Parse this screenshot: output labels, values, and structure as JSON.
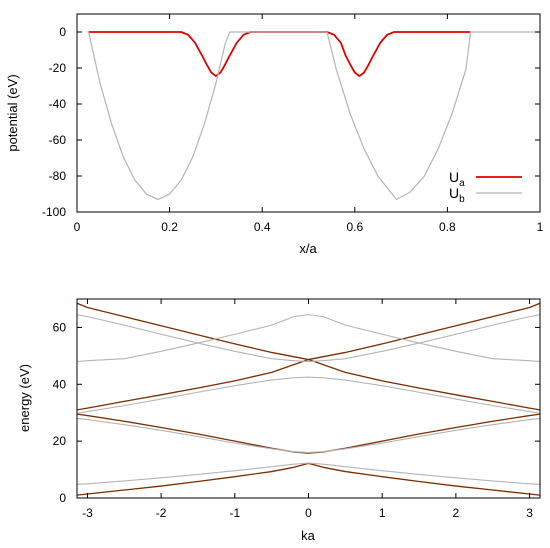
{
  "chart_data": [
    {
      "type": "line",
      "xlabel": "x/a",
      "ylabel": "potential (eV)",
      "xlim": [
        0,
        1
      ],
      "ylim": [
        -100,
        10
      ],
      "xticks": [
        0,
        0.2,
        0.4,
        0.6,
        0.8,
        1
      ],
      "xtick_labels": [
        "0",
        "0.2",
        "0.4",
        "0.6",
        "0.8",
        "1"
      ],
      "yticks": [
        0,
        -20,
        -40,
        -60,
        -80,
        -100
      ],
      "ytick_labels": [
        "0",
        "-20",
        "-40",
        "-60",
        "-80",
        "-100"
      ],
      "grid": false,
      "legend_position": "bottom-right",
      "series": [
        {
          "name": "U",
          "subscript": "a",
          "color": "#e00000",
          "x": [
            0.025,
            0.05,
            0.1,
            0.15,
            0.2,
            0.225,
            0.24,
            0.255,
            0.27,
            0.28,
            0.29,
            0.3,
            0.31,
            0.32,
            0.33,
            0.345,
            0.36,
            0.375,
            0.4,
            0.45,
            0.5,
            0.54,
            0.555,
            0.57,
            0.58,
            0.59,
            0.6,
            0.61,
            0.62,
            0.63,
            0.64,
            0.655,
            0.67,
            0.685,
            0.7,
            0.75,
            0.8,
            0.85
          ],
          "y": [
            0,
            0,
            0,
            0,
            0,
            0,
            -1.5,
            -6,
            -13,
            -18,
            -22.5,
            -24.5,
            -22.5,
            -18,
            -13,
            -6,
            -1.5,
            0,
            0,
            0,
            0,
            0,
            -1.5,
            -6,
            -13,
            -18,
            -22.5,
            -24.5,
            -22.5,
            -18,
            -13,
            -6,
            -1.5,
            0,
            0,
            0,
            0,
            0
          ]
        },
        {
          "name": "U",
          "subscript": "b",
          "color": "#b4b4b4",
          "x": [
            0.025,
            0.05,
            0.075,
            0.1,
            0.125,
            0.15,
            0.175,
            0.2,
            0.225,
            0.25,
            0.275,
            0.3,
            0.32,
            0.33,
            0.35,
            0.4,
            0.45,
            0.5,
            0.54,
            0.56,
            0.59,
            0.62,
            0.65,
            0.69,
            0.72,
            0.75,
            0.78,
            0.81,
            0.84,
            0.85,
            0.9,
            0.95,
            1.0
          ],
          "y": [
            0,
            -28.6,
            -51.2,
            -69.4,
            -82.3,
            -90.1,
            -93,
            -90.1,
            -82.3,
            -69.4,
            -51.2,
            -28.6,
            -6.5,
            0,
            0,
            0,
            0,
            0,
            0,
            -20.7,
            -45.4,
            -64.9,
            -80.1,
            -93,
            -88.9,
            -80.1,
            -64.9,
            -45.4,
            -20.7,
            0,
            0,
            0,
            0
          ]
        }
      ]
    },
    {
      "type": "line",
      "xlabel": "ka",
      "ylabel": "energy (eV)",
      "xlim": [
        -3.1416,
        3.1416
      ],
      "ylim": [
        0,
        70
      ],
      "xticks": [
        -3,
        -2,
        -1,
        0,
        1,
        2,
        3
      ],
      "xtick_labels": [
        "-3",
        "-2",
        "-1",
        "0",
        "1",
        "2",
        "3"
      ],
      "yticks": [
        0,
        20,
        40,
        60
      ],
      "ytick_labels": [
        "0",
        "20",
        "40",
        "60"
      ],
      "grid": false,
      "series": [
        {
          "color": "#7b2e00",
          "x": [
            -3.1416,
            -3.0,
            -2.5,
            -2.0,
            -1.5,
            -1.0,
            -0.5,
            -0.2,
            0,
            0.2,
            0.5,
            1.0,
            1.5,
            2.0,
            2.5,
            3.0,
            3.1416
          ],
          "y": [
            1.0,
            1.4,
            2.8,
            4.2,
            5.8,
            7.5,
            9.3,
            10.8,
            12.2,
            10.8,
            9.3,
            7.5,
            5.8,
            4.2,
            2.8,
            1.4,
            1.0
          ]
        },
        {
          "color": "#7b2e00",
          "x": [
            -3.1416,
            -3.0,
            -2.5,
            -2.0,
            -1.5,
            -1.0,
            -0.5,
            -0.2,
            0,
            0.2,
            0.5,
            1.0,
            1.5,
            2.0,
            2.5,
            3.0,
            3.1416
          ],
          "y": [
            29.5,
            29.0,
            27.0,
            24.8,
            22.5,
            20.0,
            17.5,
            16.2,
            15.8,
            16.2,
            17.5,
            20.0,
            22.5,
            24.8,
            27.0,
            29.0,
            29.5
          ]
        },
        {
          "color": "#7b2e00",
          "x": [
            -3.1416,
            -3.0,
            -2.5,
            -2.0,
            -1.5,
            -1.0,
            -0.5,
            0,
            0.5,
            1.0,
            1.5,
            2.0,
            2.5,
            3.0,
            3.1416
          ],
          "y": [
            31.0,
            31.6,
            34.0,
            36.3,
            38.7,
            41.2,
            44.2,
            48.7,
            51.2,
            54.2,
            57.4,
            60.6,
            63.8,
            67.0,
            68.5
          ]
        },
        {
          "color": "#7b2e00",
          "x": [
            -3.1416,
            -3.0,
            -2.5,
            -2.0,
            -1.5,
            -1.0,
            -0.5,
            0,
            0.5,
            1.0,
            1.5,
            2.0,
            2.5,
            3.0,
            3.1416
          ],
          "y": [
            68.5,
            67.0,
            63.8,
            60.6,
            57.4,
            54.2,
            51.2,
            48.7,
            44.2,
            41.2,
            38.7,
            36.3,
            34.0,
            31.6,
            31.0
          ]
        },
        {
          "color": "#b4b4b4",
          "x": [
            -3.1416,
            -3.0,
            -2.5,
            -2.0,
            -1.5,
            -1.0,
            -0.5,
            -0.2,
            0,
            0.2,
            0.5,
            1.0,
            1.5,
            2.0,
            2.5,
            3.0,
            3.1416
          ],
          "y": [
            4.8,
            5.0,
            6.0,
            7.1,
            8.3,
            9.6,
            11.0,
            11.9,
            12.3,
            11.9,
            11.0,
            9.6,
            8.3,
            7.1,
            6.0,
            5.0,
            4.8
          ]
        },
        {
          "color": "#b4b4b4",
          "x": [
            -3.1416,
            -3.0,
            -2.5,
            -2.0,
            -1.5,
            -1.0,
            -0.5,
            -0.2,
            0,
            0.2,
            0.5,
            1.0,
            1.5,
            2.0,
            2.5,
            3.0,
            3.1416
          ],
          "y": [
            28.0,
            27.6,
            25.8,
            23.8,
            21.6,
            19.3,
            17.3,
            16.3,
            16.0,
            16.3,
            17.3,
            19.3,
            21.6,
            23.8,
            25.8,
            27.6,
            28.0
          ]
        },
        {
          "color": "#b4b4b4",
          "x": [
            -3.1416,
            -3.0,
            -2.5,
            -2.0,
            -1.5,
            -1.0,
            -0.5,
            -0.2,
            0,
            0.2,
            0.5,
            1.0,
            1.5,
            2.0,
            2.5,
            3.0,
            3.1416
          ],
          "y": [
            29.8,
            30.4,
            32.5,
            34.8,
            37.2,
            39.5,
            41.5,
            42.3,
            42.5,
            42.3,
            41.5,
            39.5,
            37.2,
            34.8,
            32.5,
            30.4,
            29.8
          ]
        },
        {
          "color": "#b4b4b4",
          "x": [
            -3.1416,
            -3.0,
            -2.5,
            -2.0,
            -1.5,
            -1.0,
            -0.5,
            -0.2,
            0,
            0.2,
            0.5,
            1.0,
            1.5,
            2.0,
            2.5,
            3.0,
            3.1416
          ],
          "y": [
            64.5,
            63.8,
            60.8,
            57.6,
            54.5,
            51.6,
            49.0,
            48.3,
            48.0,
            48.3,
            49.0,
            51.6,
            54.5,
            57.6,
            60.8,
            63.8,
            64.5
          ]
        },
        {
          "color": "#b4b4b4",
          "x": [
            -3.1416,
            -3.0,
            -2.5,
            -2.0,
            -1.5,
            -1.0,
            -0.5,
            -0.2,
            0,
            0.2,
            0.5,
            1.0,
            1.5,
            2.0,
            2.5,
            3.0,
            3.1416
          ],
          "y": [
            48.0,
            48.3,
            49.0,
            51.6,
            54.5,
            57.6,
            60.8,
            63.8,
            64.5,
            63.8,
            60.8,
            57.6,
            54.5,
            51.6,
            49.0,
            48.3,
            48.0
          ]
        }
      ]
    }
  ]
}
